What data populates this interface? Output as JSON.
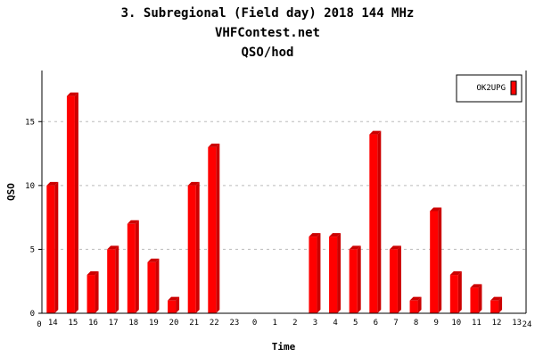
{
  "chart_data": {
    "type": "bar",
    "title": [
      "3. Subregional (Field day) 2018 144 MHz",
      "VHFContest.net",
      "QSO/hod"
    ],
    "xlabel": "Time",
    "ylabel": "QSO",
    "categories": [
      "14",
      "15",
      "16",
      "17",
      "18",
      "19",
      "20",
      "21",
      "22",
      "23",
      "0",
      "1",
      "2",
      "3",
      "4",
      "5",
      "6",
      "7",
      "8",
      "9",
      "10",
      "11",
      "12",
      "13"
    ],
    "x_axis_ends": [
      "0",
      "24"
    ],
    "series": [
      {
        "name": "OK2UPG",
        "color": "#ff0000",
        "values": [
          10,
          17,
          3,
          5,
          7,
          4,
          1,
          10,
          13,
          0,
          0,
          0,
          0,
          6,
          6,
          5,
          14,
          5,
          1,
          8,
          3,
          2,
          1,
          0
        ]
      }
    ],
    "ylim": [
      0,
      19
    ],
    "yticks": [
      0,
      5,
      10,
      15
    ],
    "grid": true,
    "legend_placement": "top-right"
  }
}
